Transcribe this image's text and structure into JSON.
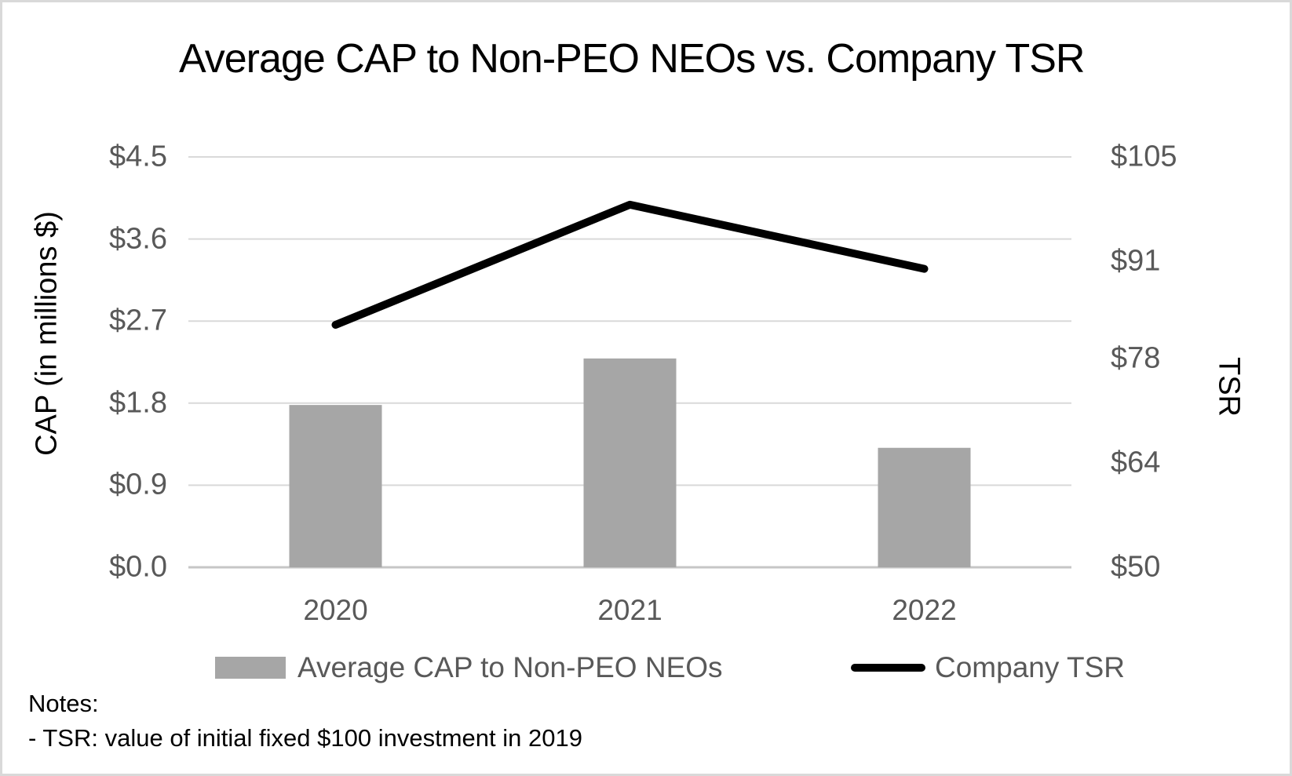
{
  "chart_data": {
    "type": "combo-bar-line",
    "title": "Average CAP to Non-PEO NEOs vs. Company TSR",
    "categories": [
      "2020",
      "2021",
      "2022"
    ],
    "series": [
      {
        "name": "Average CAP to Non-PEO NEOs",
        "type": "bar",
        "axis": "left",
        "values": [
          1.78,
          2.29,
          1.31
        ]
      },
      {
        "name": "Company TSR",
        "type": "line",
        "axis": "right",
        "values": [
          82.5,
          98.6,
          90
        ]
      }
    ],
    "left_axis": {
      "label": "CAP (in millions $)",
      "range": [
        0,
        4.5
      ],
      "tick_values": [
        4.5,
        3.6,
        2.7,
        1.8,
        0.9,
        0
      ],
      "tick_labels": [
        "$4.5",
        "$3.6",
        "$2.7",
        "$1.8",
        "$0.9",
        "$0.0"
      ]
    },
    "right_axis": {
      "label": "TSR",
      "range": [
        50,
        105
      ],
      "tick_values": [
        105,
        91,
        78,
        64,
        50
      ],
      "tick_labels": [
        "$105",
        "$91",
        "$78",
        "$64",
        "$50"
      ]
    },
    "legend": {
      "position": "bottom"
    },
    "grid": true
  },
  "notes": {
    "heading": "Notes:",
    "items": [
      "- TSR: value of initial fixed $100 investment in 2019"
    ]
  },
  "colors": {
    "background": "#ffffff",
    "frame_border": "#d9d9d9",
    "gridline": "#d9d9d9",
    "axis_line": "#c6c6c6",
    "bar": "#a6a6a6",
    "line": "#000000",
    "tick_text": "#595959",
    "legend_text": "#595959",
    "title_text": "#000000",
    "notes_text": "#000000"
  }
}
